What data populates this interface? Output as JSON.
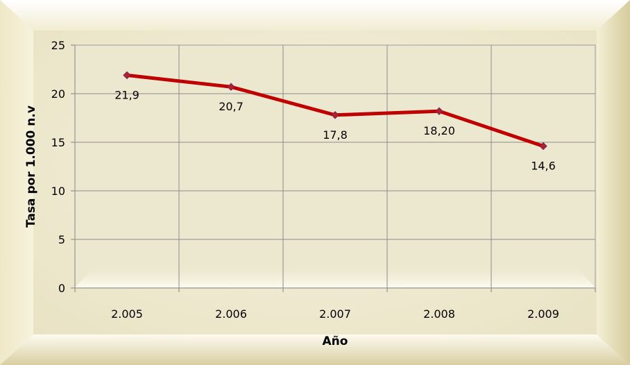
{
  "chart_data": {
    "type": "line",
    "categories": [
      "2.005",
      "2.006",
      "2.007",
      "2.008",
      "2.009"
    ],
    "series": [
      {
        "values": [
          21.9,
          20.7,
          17.8,
          18.2,
          14.6
        ],
        "data_labels": [
          "21,9",
          "20,7",
          "17,8",
          "18,20",
          "14,6"
        ]
      }
    ],
    "xlabel": "Año",
    "ylabel": "Tasa por 1.000 n.v",
    "ylim": [
      0,
      25
    ],
    "yticks": [
      "0",
      "5",
      "10",
      "15",
      "20",
      "25"
    ],
    "grid": true,
    "legend": "none"
  },
  "colors": {
    "line": "#c00000",
    "marker": "#b22222",
    "marker_edge": "#7a1f5c",
    "background_light": "#fbf7e3",
    "background_bevel": "#dcd3a8",
    "plot_area": "#ece7cf",
    "gridline": "#8c8c8c"
  }
}
